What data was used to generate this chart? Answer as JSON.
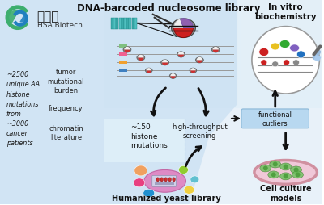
{
  "white_bg": "#ffffff",
  "blue_panel_color": "#c8dff2",
  "title_dna": "DNA-barcoded nucleosome library",
  "title_vitro": "In vitro\nbiochemistry",
  "title_yeast": "Humanized yeast library",
  "title_cell": "Cell culture\nmodels",
  "label_150": "~150\nhistone\nmutations",
  "label_hts": "high-throughput\nscreening",
  "label_fo": "functional\noutliers",
  "label_2500": "~2500\nunique AA\nhistone\nmutations\nfrom\n~3000\ncancer\npatients",
  "label_tmb": "tumor\nmutational\nburden",
  "label_freq": "frequency",
  "label_chrom": "chromatin\nliterature",
  "logo_text_cn": "海思安",
  "logo_text_en": "HSA Biotech",
  "arrow_color": "#111111",
  "fo_box_color": "#b8d8f0",
  "green_logo": "#3dae6e",
  "blue_logo": "#2080c0"
}
